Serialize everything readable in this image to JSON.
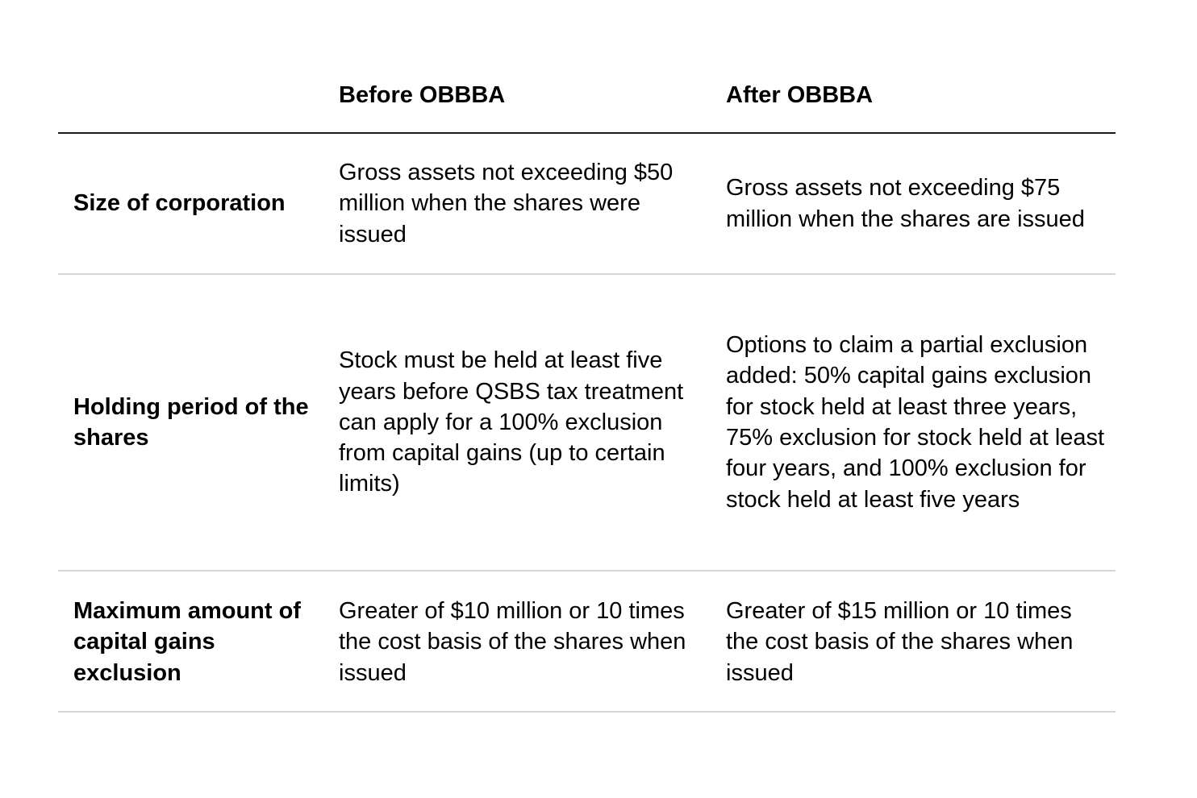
{
  "table": {
    "headers": {
      "row_label": "",
      "before": "Before OBBBA",
      "after": "After OBBBA"
    },
    "rows": [
      {
        "label": "Size of corporation",
        "before": "Gross assets not exceeding $50 million when the shares were issued",
        "after": "Gross assets not exceeding $75 million when the shares are issued"
      },
      {
        "label": "Holding period of the shares",
        "before": "Stock must be held at least five years before QSBS tax treatment can apply for a 100% exclusion from capital gains (up to certain limits)",
        "after": "Options to claim a partial exclusion added: 50% capital gains exclusion for stock held at least three years, 75% exclusion for stock held at least four years, and 100% exclusion for stock held at least five years"
      },
      {
        "label": "Maximum amount of capital gains exclusion",
        "before": "Greater of $10 million or 10 times the cost basis of the shares when issued",
        "after": "Greater of $15 million or 10 times the cost basis of the shares when issued"
      }
    ]
  },
  "colors": {
    "header_rule": "#1a1a1a",
    "row_rule": "#d6d6d6",
    "text": "#000000",
    "background": "#ffffff"
  }
}
